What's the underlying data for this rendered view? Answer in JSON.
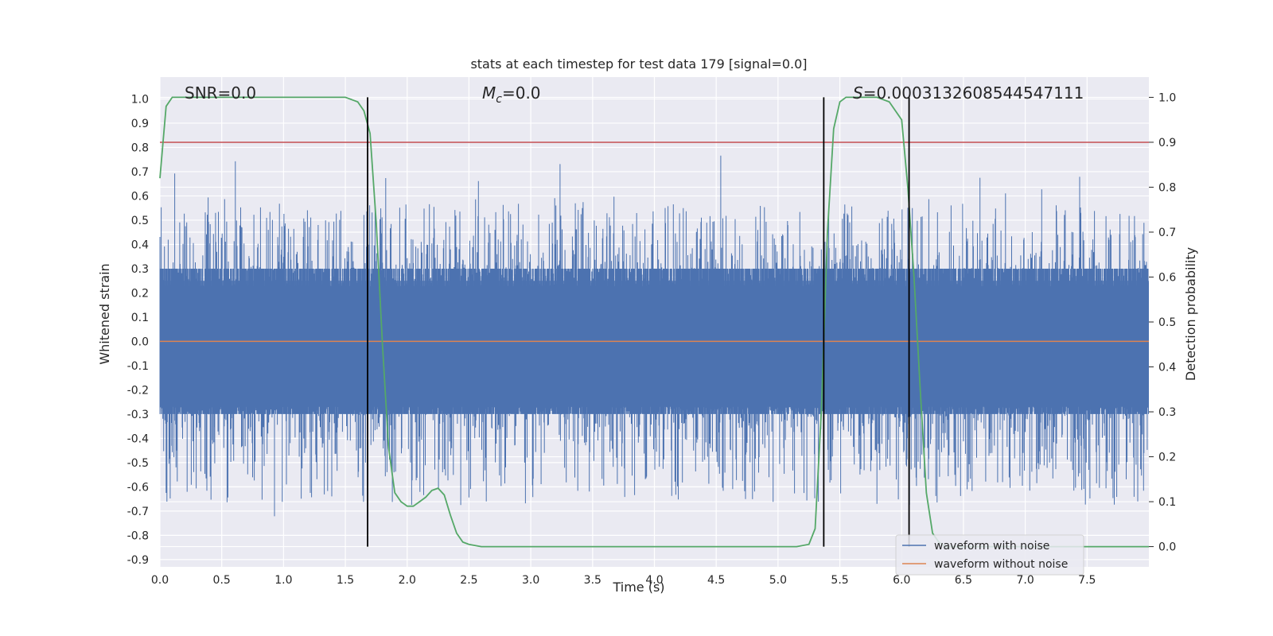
{
  "chart_data": {
    "type": "line",
    "title": "stats at each timestep for test data 179 [signal=0.0]",
    "xlabel": "Time (s)",
    "ylabel": "Whitened strain",
    "y2label": "Detection probability",
    "xlim": [
      0.0,
      8.0
    ],
    "ylim": [
      -0.93,
      1.09
    ],
    "y2lim": [
      -0.045,
      1.045
    ],
    "x_ticks": [
      "0.0",
      "0.5",
      "1.0",
      "1.5",
      "2.0",
      "2.5",
      "3.0",
      "3.5",
      "4.0",
      "4.5",
      "5.0",
      "5.5",
      "6.0",
      "6.5",
      "7.0",
      "7.5"
    ],
    "y_ticks": [
      "1.0",
      "0.9",
      "0.8",
      "0.7",
      "0.6",
      "0.5",
      "0.4",
      "0.3",
      "0.2",
      "0.1",
      "0.0",
      "-0.1",
      "-0.2",
      "-0.3",
      "-0.4",
      "-0.5",
      "-0.6",
      "-0.7",
      "-0.8",
      "-0.9"
    ],
    "y2_ticks": [
      "1.0",
      "0.9",
      "0.8",
      "0.7",
      "0.6",
      "0.5",
      "0.4",
      "0.3",
      "0.2",
      "0.1",
      "0.0"
    ],
    "grid": true,
    "legend_position": "bottom-right",
    "annotations": {
      "snr": "SNR=0.0",
      "mc_symbol": "M",
      "mc_sub": "c",
      "mc_rest": "=0.0",
      "s_symbol": "S",
      "s_rest": "=0.0003132608544547111"
    },
    "series": [
      {
        "name": "waveform with noise",
        "color": "#4c72b0",
        "kind": "noise",
        "envelope_pos": 0.38,
        "envelope_neg": -0.45,
        "dense_band": 0.3
      },
      {
        "name": "waveform without noise",
        "color": "#dd8452",
        "kind": "constant",
        "value": 0.0
      },
      {
        "name": "detection probability",
        "color": "#55a868",
        "axis": "right",
        "x": [
          0.0,
          0.05,
          0.1,
          0.2,
          0.4,
          0.8,
          1.2,
          1.5,
          1.6,
          1.65,
          1.7,
          1.75,
          1.8,
          1.85,
          1.9,
          1.95,
          2.0,
          2.05,
          2.1,
          2.15,
          2.2,
          2.25,
          2.3,
          2.35,
          2.4,
          2.45,
          2.5,
          2.6,
          3.0,
          4.0,
          5.0,
          5.15,
          5.25,
          5.3,
          5.35,
          5.4,
          5.45,
          5.5,
          5.55,
          5.6,
          5.7,
          5.8,
          5.9,
          6.0,
          6.05,
          6.1,
          6.15,
          6.2,
          6.25,
          6.3,
          6.35,
          6.4,
          7.0,
          8.0
        ],
        "y": [
          0.82,
          0.98,
          1.0,
          1.0,
          1.0,
          1.0,
          1.0,
          1.0,
          0.99,
          0.97,
          0.92,
          0.72,
          0.45,
          0.22,
          0.12,
          0.1,
          0.09,
          0.09,
          0.1,
          0.11,
          0.125,
          0.13,
          0.115,
          0.07,
          0.03,
          0.01,
          0.005,
          0.0,
          0.0,
          0.0,
          0.0,
          0.0,
          0.005,
          0.04,
          0.3,
          0.7,
          0.93,
          0.99,
          1.0,
          1.0,
          1.0,
          1.0,
          0.99,
          0.95,
          0.8,
          0.6,
          0.35,
          0.12,
          0.03,
          0.01,
          0.0,
          0.0,
          0.0,
          0.0
        ]
      }
    ],
    "threshold": {
      "value": 0.9,
      "axis": "right",
      "color": "#c44e52"
    },
    "vlines": [
      1.68,
      5.37,
      6.06
    ],
    "legend": [
      "waveform with noise",
      "waveform without noise"
    ]
  }
}
